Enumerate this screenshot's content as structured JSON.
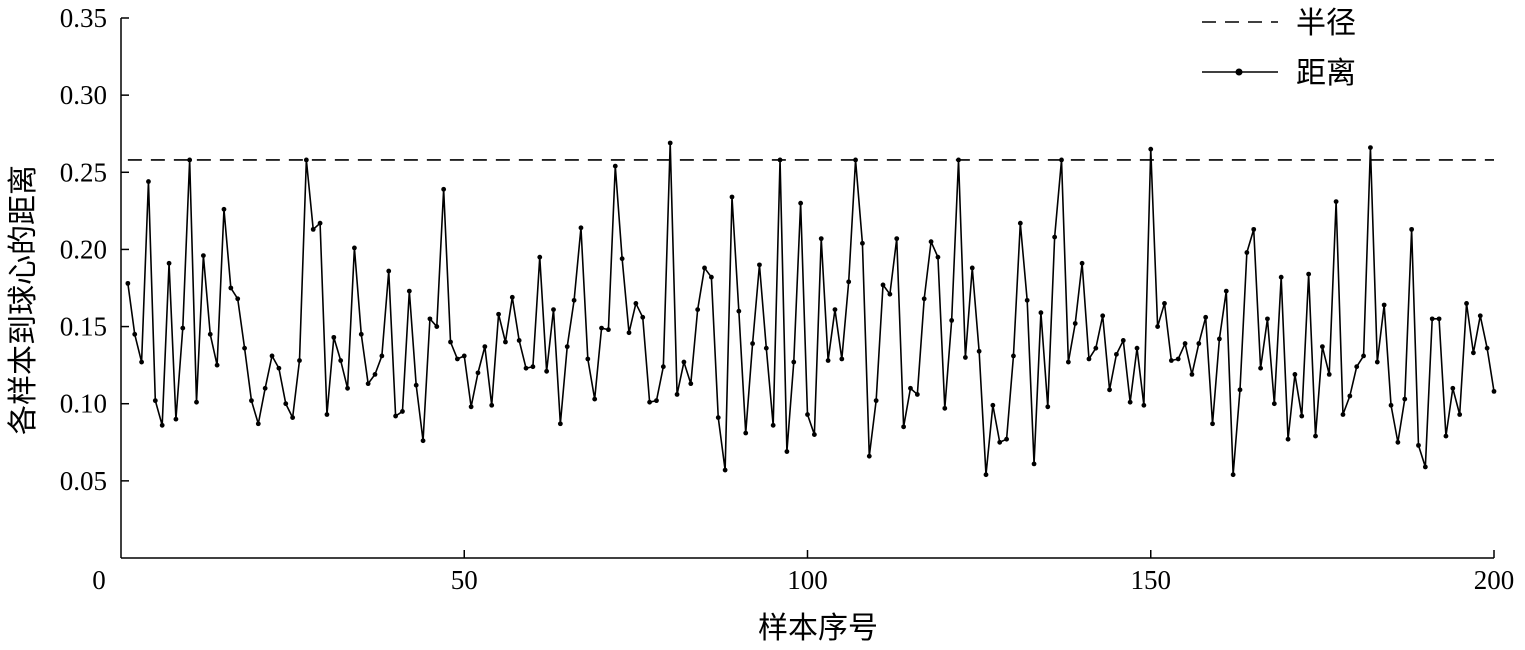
{
  "chart_data": {
    "type": "line",
    "title": "",
    "xlabel": "样本序号",
    "ylabel": "各样本到球心的距离",
    "xlim": [
      0,
      200
    ],
    "ylim": [
      0,
      0.35
    ],
    "origin_label": "0",
    "x_ticks": [
      {
        "value": 50,
        "label": "50"
      },
      {
        "value": 100,
        "label": "100"
      },
      {
        "value": 150,
        "label": "150"
      },
      {
        "value": 200,
        "label": "200"
      }
    ],
    "y_ticks": [
      {
        "value": 0.05,
        "label": "0.05"
      },
      {
        "value": 0.1,
        "label": "0.10"
      },
      {
        "value": 0.15,
        "label": "0.15"
      },
      {
        "value": 0.2,
        "label": "0.20"
      },
      {
        "value": 0.25,
        "label": "0.25"
      },
      {
        "value": 0.3,
        "label": "0.30"
      },
      {
        "value": 0.35,
        "label": "0.35"
      }
    ],
    "grid": false,
    "legend_position": "top-right",
    "series": [
      {
        "name": "半径",
        "style": "dashed",
        "color": "#000000",
        "x": [
          1,
          200
        ],
        "values": [
          0.258,
          0.258
        ]
      },
      {
        "name": "距离",
        "style": "solid-with-markers",
        "color": "#000000",
        "x": [
          1,
          2,
          3,
          4,
          5,
          6,
          7,
          8,
          9,
          10,
          11,
          12,
          13,
          14,
          15,
          16,
          17,
          18,
          19,
          20,
          21,
          22,
          23,
          24,
          25,
          26,
          27,
          28,
          29,
          30,
          31,
          32,
          33,
          34,
          35,
          36,
          37,
          38,
          39,
          40,
          41,
          42,
          43,
          44,
          45,
          46,
          47,
          48,
          49,
          50,
          51,
          52,
          53,
          54,
          55,
          56,
          57,
          58,
          59,
          60,
          61,
          62,
          63,
          64,
          65,
          66,
          67,
          68,
          69,
          70,
          71,
          72,
          73,
          74,
          75,
          76,
          77,
          78,
          79,
          80,
          81,
          82,
          83,
          84,
          85,
          86,
          87,
          88,
          89,
          90,
          91,
          92,
          93,
          94,
          95,
          96,
          97,
          98,
          99,
          100,
          101,
          102,
          103,
          104,
          105,
          106,
          107,
          108,
          109,
          110,
          111,
          112,
          113,
          114,
          115,
          116,
          117,
          118,
          119,
          120,
          121,
          122,
          123,
          124,
          125,
          126,
          127,
          128,
          129,
          130,
          131,
          132,
          133,
          134,
          135,
          136,
          137,
          138,
          139,
          140,
          141,
          142,
          143,
          144,
          145,
          146,
          147,
          148,
          149,
          150,
          151,
          152,
          153,
          154,
          155,
          156,
          157,
          158,
          159,
          160,
          161,
          162,
          163,
          164,
          165,
          166,
          167,
          168,
          169,
          170,
          171,
          172,
          173,
          174,
          175,
          176,
          177,
          178,
          179,
          180,
          181,
          182,
          183,
          184,
          185,
          186,
          187,
          188,
          189,
          190,
          191,
          192,
          193,
          194,
          195,
          196,
          197,
          198,
          199,
          200
        ],
        "values": [
          0.178,
          0.145,
          0.127,
          0.244,
          0.102,
          0.086,
          0.191,
          0.09,
          0.149,
          0.258,
          0.101,
          0.196,
          0.145,
          0.125,
          0.226,
          0.175,
          0.168,
          0.136,
          0.102,
          0.087,
          0.11,
          0.131,
          0.123,
          0.1,
          0.091,
          0.128,
          0.258,
          0.213,
          0.217,
          0.093,
          0.143,
          0.128,
          0.11,
          0.201,
          0.145,
          0.113,
          0.119,
          0.131,
          0.186,
          0.092,
          0.095,
          0.173,
          0.112,
          0.076,
          0.155,
          0.15,
          0.239,
          0.14,
          0.129,
          0.131,
          0.098,
          0.12,
          0.137,
          0.099,
          0.158,
          0.14,
          0.169,
          0.141,
          0.123,
          0.124,
          0.195,
          0.121,
          0.161,
          0.087,
          0.137,
          0.167,
          0.214,
          0.129,
          0.103,
          0.149,
          0.148,
          0.254,
          0.194,
          0.146,
          0.165,
          0.156,
          0.101,
          0.102,
          0.124,
          0.269,
          0.106,
          0.127,
          0.113,
          0.161,
          0.188,
          0.182,
          0.091,
          0.057,
          0.234,
          0.16,
          0.081,
          0.139,
          0.19,
          0.136,
          0.086,
          0.258,
          0.069,
          0.127,
          0.23,
          0.093,
          0.08,
          0.207,
          0.128,
          0.161,
          0.129,
          0.179,
          0.258,
          0.204,
          0.066,
          0.102,
          0.177,
          0.171,
          0.207,
          0.085,
          0.11,
          0.106,
          0.168,
          0.205,
          0.195,
          0.097,
          0.154,
          0.258,
          0.13,
          0.188,
          0.134,
          0.054,
          0.099,
          0.075,
          0.077,
          0.131,
          0.217,
          0.167,
          0.061,
          0.159,
          0.098,
          0.208,
          0.258,
          0.127,
          0.152,
          0.191,
          0.129,
          0.136,
          0.157,
          0.109,
          0.132,
          0.141,
          0.101,
          0.136,
          0.099,
          0.265,
          0.15,
          0.165,
          0.128,
          0.129,
          0.139,
          0.119,
          0.139,
          0.156,
          0.087,
          0.142,
          0.173,
          0.054,
          0.109,
          0.198,
          0.213,
          0.123,
          0.155,
          0.1,
          0.182,
          0.077,
          0.119,
          0.092,
          0.184,
          0.079,
          0.137,
          0.119,
          0.231,
          0.093,
          0.105,
          0.124,
          0.131,
          0.266,
          0.127,
          0.164,
          0.099,
          0.075,
          0.103,
          0.213,
          0.073,
          0.059,
          0.155,
          0.155,
          0.079,
          0.11,
          0.093,
          0.165,
          0.133,
          0.157,
          0.136,
          0.108
        ]
      }
    ]
  }
}
